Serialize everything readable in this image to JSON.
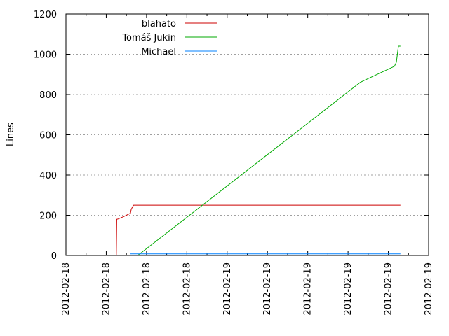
{
  "chart_data": {
    "type": "line",
    "title": "",
    "xlabel": "",
    "ylabel": "Lines",
    "ylim": [
      0,
      1200
    ],
    "yticks": [
      0,
      200,
      400,
      600,
      800,
      1000,
      1200
    ],
    "xlim": [
      0,
      9
    ],
    "xtick_labels": [
      "2012-02-18",
      "2012-02-18",
      "2012-02-18",
      "2012-02-18",
      "2012-02-19",
      "2012-02-19",
      "2012-02-19",
      "2012-02-19",
      "2012-02-19",
      "2012-02-19"
    ],
    "grid": "horizontal dashed",
    "legend_position": "top-left",
    "series": [
      {
        "name": "blahato",
        "color": "#cc0000",
        "x": [
          1.25,
          1.26,
          1.3,
          1.45,
          1.6,
          1.62,
          1.66,
          1.68,
          8.3
        ],
        "y": [
          0,
          180,
          182,
          195,
          210,
          230,
          245,
          250,
          250
        ]
      },
      {
        "name": "Tomáš Jukin",
        "color": "#00aa00",
        "x": [
          1.78,
          7.3,
          7.4,
          8.15,
          8.2,
          8.25,
          8.3
        ],
        "y": [
          0,
          860,
          870,
          940,
          960,
          1040,
          1040
        ]
      },
      {
        "name": "Michael",
        "color": "#0080ff",
        "x": [
          1.6,
          8.3
        ],
        "y": [
          8,
          8
        ]
      }
    ]
  }
}
